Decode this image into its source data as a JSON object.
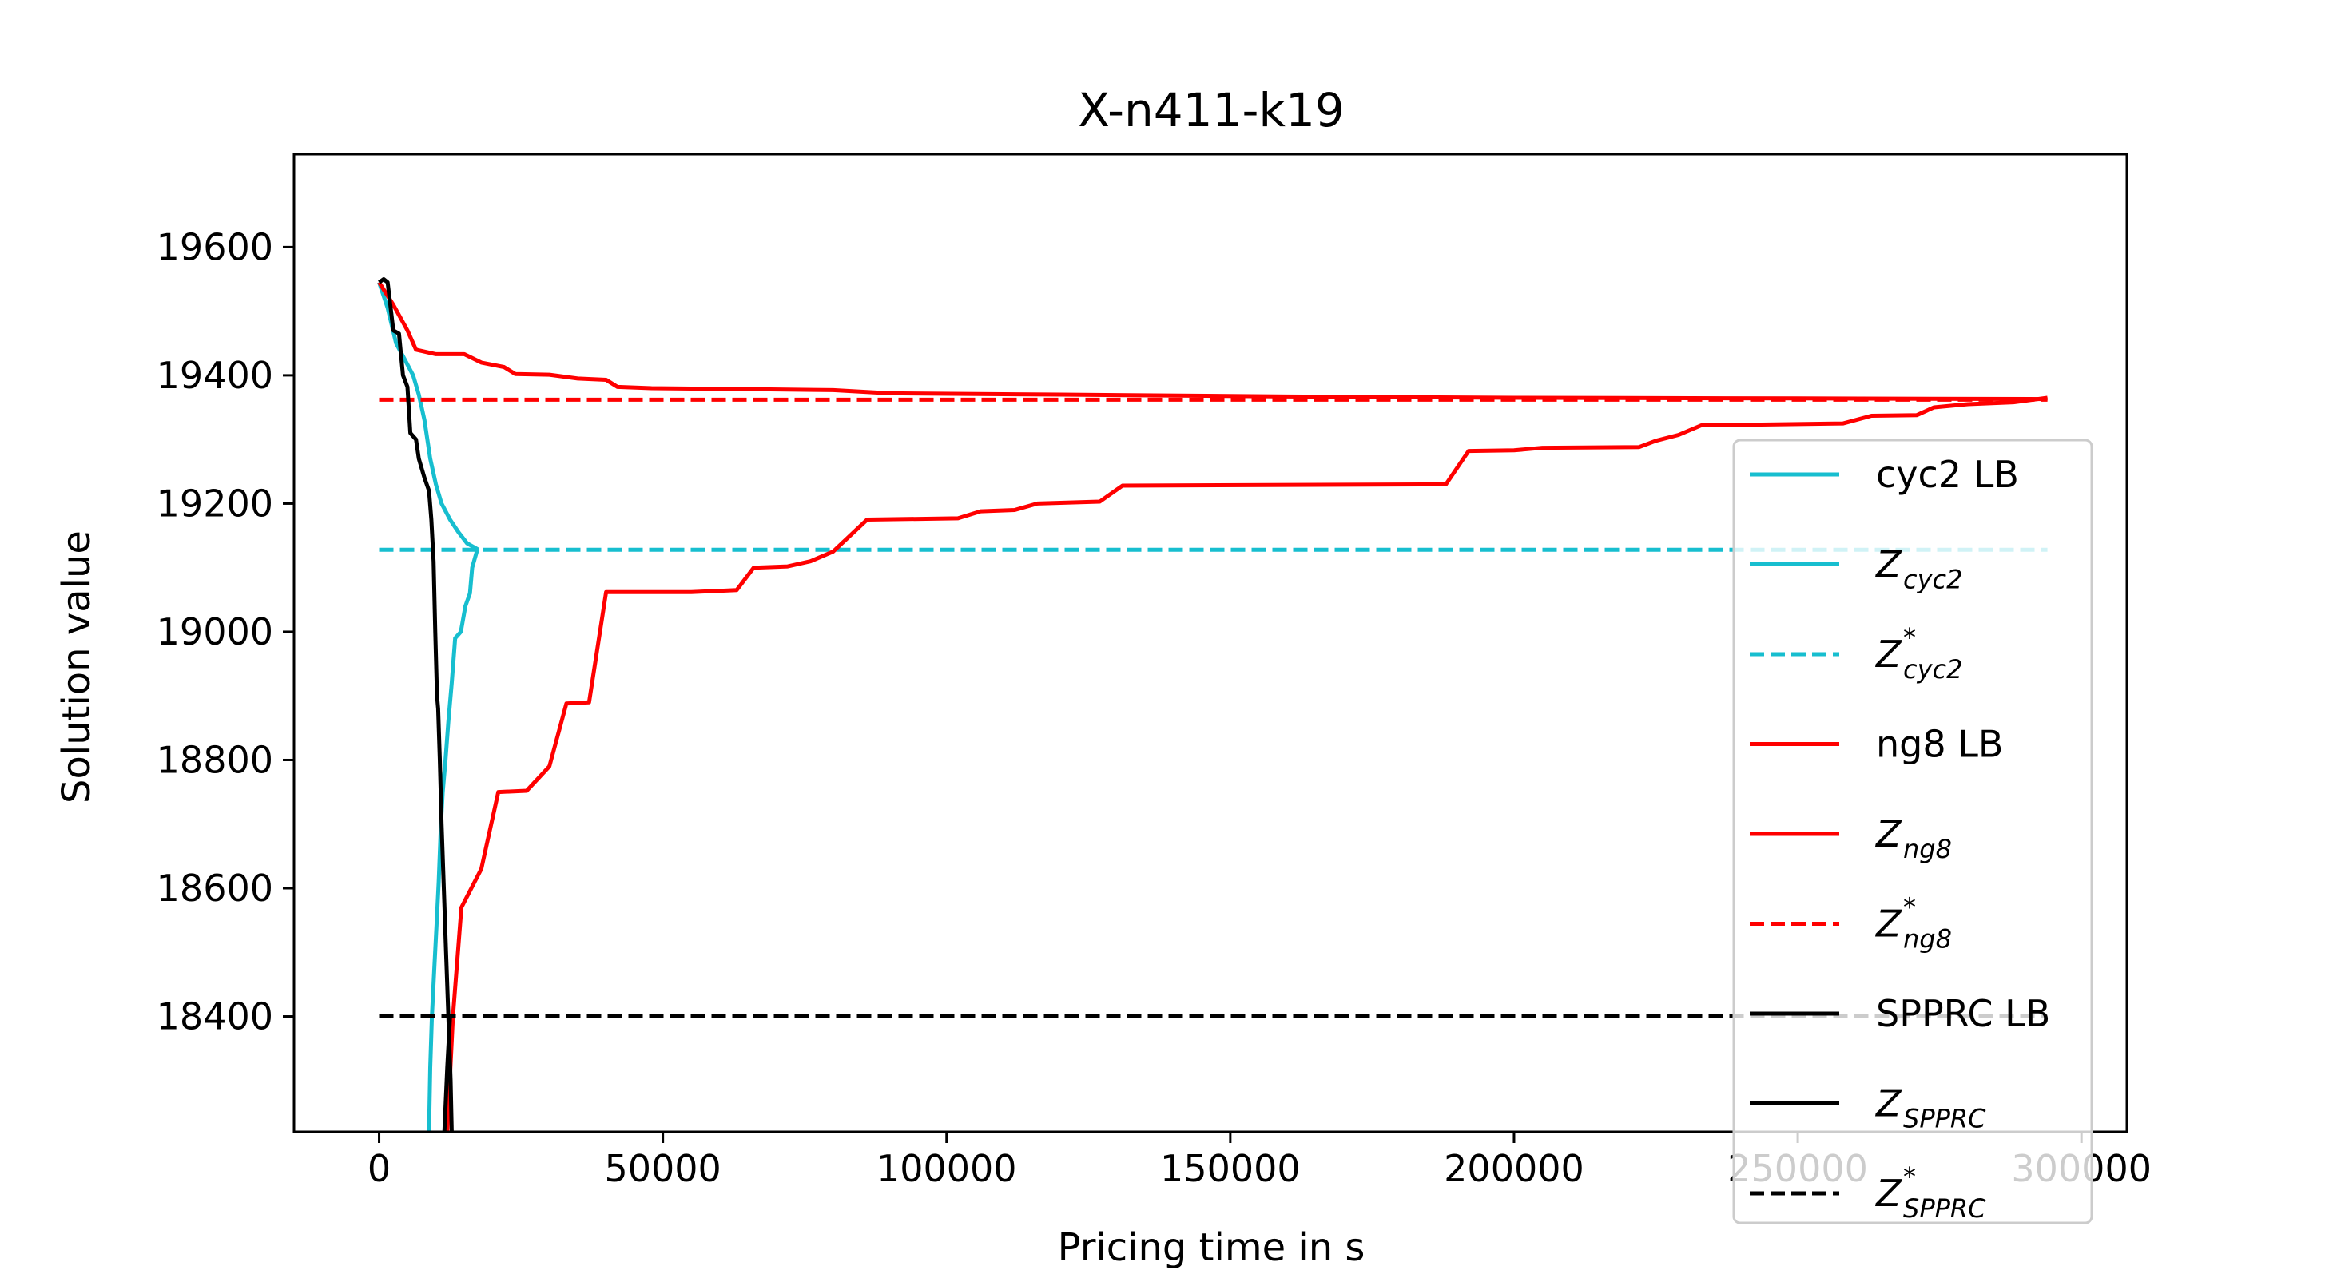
{
  "chart_data": {
    "type": "line",
    "title": "X-n411-k19",
    "xlabel": "Pricing time in s",
    "ylabel": "Solution value",
    "xlim": [
      -15000,
      308000
    ],
    "ylim": [
      18220,
      19745
    ],
    "xticks": [
      0,
      50000,
      100000,
      150000,
      200000,
      250000,
      300000
    ],
    "xtick_labels": [
      "0",
      "50000",
      "100000",
      "150000",
      "200000",
      "250000",
      "300000"
    ],
    "yticks": [
      18400,
      18600,
      18800,
      19000,
      19200,
      19400,
      19600
    ],
    "ytick_labels": [
      "18400",
      "18600",
      "18800",
      "19000",
      "19200",
      "19400",
      "19600"
    ],
    "grid": false,
    "legend_position": "right",
    "series": [
      {
        "name": "cyc2 LB",
        "color": "#17becf",
        "style": "solid",
        "points": [
          [
            0,
            19545
          ],
          [
            1500,
            19505
          ],
          [
            3000,
            19450
          ],
          [
            4500,
            19425
          ],
          [
            6000,
            19400
          ],
          [
            7000,
            19370
          ],
          [
            8000,
            19330
          ],
          [
            9000,
            19270
          ],
          [
            10000,
            19230
          ],
          [
            11000,
            19200
          ],
          [
            12500,
            19175
          ],
          [
            14000,
            19155
          ],
          [
            15500,
            19138
          ],
          [
            17500,
            19128
          ]
        ]
      },
      {
        "name": "Z_cyc2",
        "color": "#17becf",
        "style": "solid",
        "points": [
          [
            8800,
            18220
          ],
          [
            9000,
            18320
          ],
          [
            9300,
            18400
          ],
          [
            9700,
            18470
          ],
          [
            10100,
            18540
          ],
          [
            10500,
            18610
          ],
          [
            10900,
            18700
          ],
          [
            11200,
            18750
          ],
          [
            11700,
            18800
          ],
          [
            12200,
            18860
          ],
          [
            12800,
            18920
          ],
          [
            13400,
            18990
          ],
          [
            14400,
            19000
          ],
          [
            15200,
            19040
          ],
          [
            16000,
            19060
          ],
          [
            16400,
            19100
          ],
          [
            17300,
            19128
          ]
        ]
      },
      {
        "name": "Z*_cyc2",
        "color": "#17becf",
        "style": "dashed",
        "points": [
          [
            0,
            19128
          ],
          [
            294000,
            19128
          ]
        ]
      },
      {
        "name": "ng8 LB",
        "color": "#ff0000",
        "style": "solid",
        "points": [
          [
            0,
            19545
          ],
          [
            2500,
            19510
          ],
          [
            5000,
            19470
          ],
          [
            6500,
            19440
          ],
          [
            10000,
            19433
          ],
          [
            15000,
            19433
          ],
          [
            18000,
            19420
          ],
          [
            22000,
            19413
          ],
          [
            24000,
            19402
          ],
          [
            30000,
            19401
          ],
          [
            35000,
            19395
          ],
          [
            40000,
            19393
          ],
          [
            42000,
            19382
          ],
          [
            48000,
            19380
          ],
          [
            60000,
            19379
          ],
          [
            80000,
            19377
          ],
          [
            90000,
            19372
          ],
          [
            120000,
            19370
          ],
          [
            160000,
            19367
          ],
          [
            200000,
            19365
          ],
          [
            250000,
            19364
          ],
          [
            294000,
            19363
          ]
        ]
      },
      {
        "name": "Z_ng8",
        "color": "#ff0000",
        "style": "solid",
        "points": [
          [
            12000,
            18220
          ],
          [
            13000,
            18400
          ],
          [
            14500,
            18570
          ],
          [
            18000,
            18630
          ],
          [
            21000,
            18750
          ],
          [
            26000,
            18752
          ],
          [
            30000,
            18790
          ],
          [
            33000,
            18888
          ],
          [
            37000,
            18890
          ],
          [
            40000,
            19062
          ],
          [
            55000,
            19062
          ],
          [
            63000,
            19065
          ],
          [
            66000,
            19100
          ],
          [
            72000,
            19102
          ],
          [
            76000,
            19110
          ],
          [
            80000,
            19125
          ],
          [
            86000,
            19175
          ],
          [
            102000,
            19177
          ],
          [
            106000,
            19188
          ],
          [
            112000,
            19190
          ],
          [
            116000,
            19200
          ],
          [
            127000,
            19203
          ],
          [
            131000,
            19228
          ],
          [
            188000,
            19230
          ],
          [
            192000,
            19282
          ],
          [
            200000,
            19283
          ],
          [
            205000,
            19287
          ],
          [
            222000,
            19288
          ],
          [
            225000,
            19298
          ],
          [
            229000,
            19307
          ],
          [
            233000,
            19322
          ],
          [
            258000,
            19325
          ],
          [
            263000,
            19337
          ],
          [
            271000,
            19338
          ],
          [
            274000,
            19350
          ],
          [
            280000,
            19355
          ],
          [
            288000,
            19358
          ],
          [
            294000,
            19365
          ]
        ]
      },
      {
        "name": "Z*_ng8",
        "color": "#ff0000",
        "style": "dashed",
        "points": [
          [
            0,
            19362
          ],
          [
            294000,
            19362
          ]
        ]
      },
      {
        "name": "SPPRC LB",
        "color": "#000000",
        "style": "solid",
        "points": [
          [
            0,
            19545
          ],
          [
            800,
            19550
          ],
          [
            1500,
            19545
          ],
          [
            2500,
            19470
          ],
          [
            3500,
            19465
          ],
          [
            4200,
            19400
          ],
          [
            5000,
            19382
          ],
          [
            5500,
            19310
          ],
          [
            6500,
            19300
          ],
          [
            7000,
            19270
          ],
          [
            8000,
            19240
          ],
          [
            8800,
            19220
          ],
          [
            9200,
            19175
          ],
          [
            9600,
            19110
          ],
          [
            9900,
            19000
          ],
          [
            10200,
            18900
          ],
          [
            10400,
            18880
          ],
          [
            10700,
            18800
          ],
          [
            11000,
            18700
          ],
          [
            11400,
            18600
          ],
          [
            11800,
            18500
          ],
          [
            12200,
            18400
          ],
          [
            12600,
            18300
          ],
          [
            12800,
            18220
          ]
        ]
      },
      {
        "name": "Z_SPPRC",
        "color": "#000000",
        "style": "solid",
        "points": [
          [
            11500,
            18220
          ],
          [
            12000,
            18320
          ],
          [
            12500,
            18400
          ]
        ]
      },
      {
        "name": "Z*_SPPRC",
        "color": "#000000",
        "style": "dashed",
        "points": [
          [
            0,
            18400
          ],
          [
            294000,
            18400
          ]
        ]
      }
    ]
  },
  "legend": {
    "items": [
      {
        "type": "plain",
        "text": "cyc2 LB",
        "color": "#17becf",
        "style": "solid"
      },
      {
        "type": "math",
        "main": "Z",
        "sub": "cyc2",
        "sup": "",
        "color": "#17becf",
        "style": "solid"
      },
      {
        "type": "math",
        "main": "Z",
        "sub": "cyc2",
        "sup": "*",
        "color": "#17becf",
        "style": "dashed"
      },
      {
        "type": "plain",
        "text": "ng8 LB",
        "color": "#ff0000",
        "style": "solid"
      },
      {
        "type": "math",
        "main": "Z",
        "sub": "ng8",
        "sup": "",
        "color": "#ff0000",
        "style": "solid"
      },
      {
        "type": "math",
        "main": "Z",
        "sub": "ng8",
        "sup": "*",
        "color": "#ff0000",
        "style": "dashed"
      },
      {
        "type": "plain",
        "text": "SPPRC LB",
        "color": "#000000",
        "style": "solid"
      },
      {
        "type": "math",
        "main": "Z",
        "sub": "SPPRC",
        "sup": "",
        "color": "#000000",
        "style": "solid"
      },
      {
        "type": "math",
        "main": "Z",
        "sub": "SPPRC",
        "sup": "*",
        "color": "#000000",
        "style": "dashed"
      }
    ]
  }
}
